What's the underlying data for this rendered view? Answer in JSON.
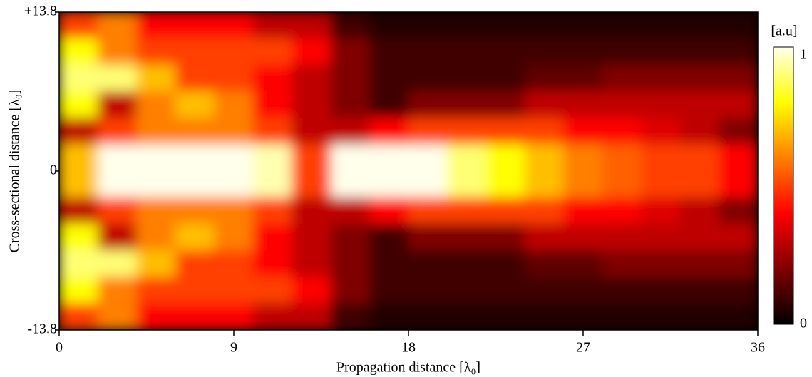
{
  "chart_data": {
    "type": "heatmap",
    "x_label": "Propagation distance [λ₀]",
    "y_label": "Cross-sectional distance [λ₀]",
    "xlim": [
      0,
      36
    ],
    "xticks": [
      0,
      9,
      18,
      27,
      36
    ],
    "ylim": [
      -13.8,
      13.8
    ],
    "yticks": [
      {
        "value": 13.8,
        "label": "+13.8"
      },
      0,
      -13.8
    ],
    "colormap": "hot",
    "colorbar_label": "[a.u]",
    "zlim": [
      0,
      1
    ],
    "zticks": [
      1,
      0
    ],
    "z": [
      [
        0.5,
        0.6,
        0.4,
        0.4,
        0.4,
        0.3,
        0.3,
        0.1,
        0.05,
        0.05,
        0.05,
        0.05,
        0.05,
        0.05,
        0.05,
        0.05,
        0.05,
        0.05
      ],
      [
        0.8,
        0.6,
        0.5,
        0.5,
        0.5,
        0.5,
        0.4,
        0.2,
        0.1,
        0.1,
        0.1,
        0.1,
        0.1,
        0.1,
        0.1,
        0.1,
        0.1,
        0.1
      ],
      [
        0.9,
        0.9,
        0.7,
        0.5,
        0.5,
        0.4,
        0.3,
        0.2,
        0.1,
        0.1,
        0.1,
        0.1,
        0.15,
        0.15,
        0.2,
        0.2,
        0.2,
        0.2
      ],
      [
        0.8,
        0.3,
        0.6,
        0.7,
        0.6,
        0.4,
        0.3,
        0.2,
        0.1,
        0.2,
        0.2,
        0.2,
        0.3,
        0.3,
        0.3,
        0.3,
        0.3,
        0.3
      ],
      [
        0.3,
        0.5,
        0.6,
        0.6,
        0.6,
        0.5,
        0.3,
        0.3,
        0.4,
        0.5,
        0.5,
        0.5,
        0.5,
        0.4,
        0.4,
        0.35,
        0.3,
        0.2
      ],
      [
        0.7,
        1,
        1,
        1,
        1,
        0.95,
        0.5,
        1,
        1,
        1,
        0.9,
        0.8,
        0.7,
        0.6,
        0.55,
        0.5,
        0.5,
        0.4
      ],
      [
        0.7,
        1,
        1,
        1,
        1,
        0.95,
        0.5,
        1,
        1,
        1,
        0.9,
        0.8,
        0.7,
        0.6,
        0.55,
        0.5,
        0.5,
        0.4
      ],
      [
        0.3,
        0.5,
        0.6,
        0.6,
        0.6,
        0.5,
        0.3,
        0.3,
        0.4,
        0.5,
        0.5,
        0.5,
        0.5,
        0.4,
        0.4,
        0.35,
        0.3,
        0.2
      ],
      [
        0.8,
        0.3,
        0.6,
        0.7,
        0.6,
        0.4,
        0.3,
        0.2,
        0.1,
        0.2,
        0.2,
        0.2,
        0.3,
        0.3,
        0.3,
        0.3,
        0.3,
        0.3
      ],
      [
        0.9,
        0.9,
        0.7,
        0.5,
        0.5,
        0.4,
        0.3,
        0.2,
        0.1,
        0.1,
        0.1,
        0.1,
        0.15,
        0.15,
        0.2,
        0.2,
        0.2,
        0.2
      ],
      [
        0.8,
        0.6,
        0.5,
        0.5,
        0.5,
        0.5,
        0.4,
        0.2,
        0.1,
        0.1,
        0.1,
        0.1,
        0.1,
        0.1,
        0.1,
        0.1,
        0.1,
        0.1
      ],
      [
        0.5,
        0.6,
        0.4,
        0.4,
        0.4,
        0.3,
        0.3,
        0.1,
        0.05,
        0.05,
        0.05,
        0.05,
        0.05,
        0.05,
        0.05,
        0.05,
        0.05,
        0.05
      ]
    ]
  }
}
